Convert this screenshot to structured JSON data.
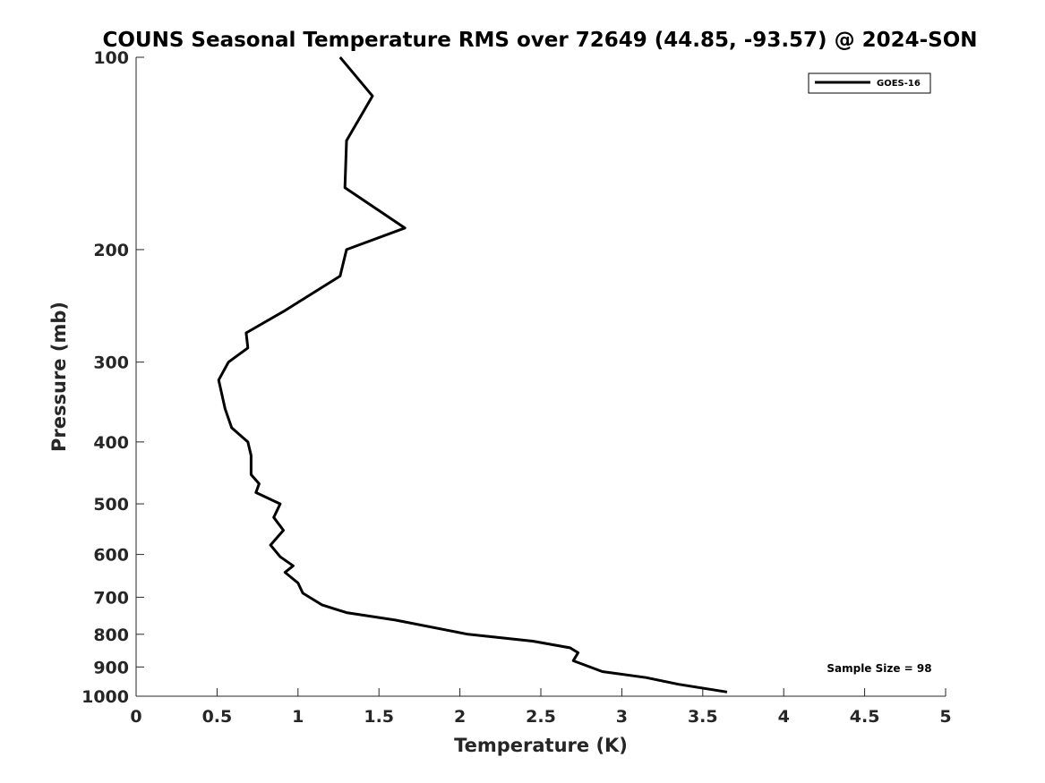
{
  "chart_data": {
    "type": "line",
    "title": "COUNS Seasonal Temperature RMS over 72649 (44.85, -93.57) @ 2024-SON",
    "xlabel": "Temperature (K)",
    "ylabel": "Pressure (mb)",
    "xlim": [
      0,
      5
    ],
    "ylim": [
      1000,
      100
    ],
    "y_scale": "log",
    "x_ticks": [
      0,
      0.5,
      1,
      1.5,
      2,
      2.5,
      3,
      3.5,
      4,
      4.5,
      5
    ],
    "x_tick_labels": [
      "0",
      "0.5",
      "1",
      "1.5",
      "2",
      "2.5",
      "3",
      "3.5",
      "4",
      "4.5",
      "5"
    ],
    "y_ticks": [
      100,
      200,
      300,
      400,
      500,
      600,
      700,
      800,
      900,
      1000
    ],
    "y_tick_labels": [
      "100",
      "200",
      "300",
      "400",
      "500",
      "600",
      "700",
      "800",
      "900",
      "1000"
    ],
    "grid": false,
    "legend_position": "top-right",
    "series": [
      {
        "name": "GOES-16",
        "color": "#000000",
        "points": [
          {
            "x": 1.26,
            "y": 100
          },
          {
            "x": 1.46,
            "y": 115
          },
          {
            "x": 1.3,
            "y": 135
          },
          {
            "x": 1.29,
            "y": 160
          },
          {
            "x": 1.66,
            "y": 185
          },
          {
            "x": 1.3,
            "y": 200
          },
          {
            "x": 1.26,
            "y": 220
          },
          {
            "x": 0.91,
            "y": 250
          },
          {
            "x": 0.68,
            "y": 270
          },
          {
            "x": 0.69,
            "y": 285
          },
          {
            "x": 0.57,
            "y": 300
          },
          {
            "x": 0.51,
            "y": 320
          },
          {
            "x": 0.55,
            "y": 355
          },
          {
            "x": 0.59,
            "y": 380
          },
          {
            "x": 0.69,
            "y": 400
          },
          {
            "x": 0.71,
            "y": 420
          },
          {
            "x": 0.71,
            "y": 450
          },
          {
            "x": 0.76,
            "y": 465
          },
          {
            "x": 0.74,
            "y": 480
          },
          {
            "x": 0.89,
            "y": 500
          },
          {
            "x": 0.85,
            "y": 525
          },
          {
            "x": 0.91,
            "y": 550
          },
          {
            "x": 0.83,
            "y": 580
          },
          {
            "x": 0.89,
            "y": 605
          },
          {
            "x": 0.97,
            "y": 625
          },
          {
            "x": 0.92,
            "y": 640
          },
          {
            "x": 1.0,
            "y": 665
          },
          {
            "x": 1.03,
            "y": 690
          },
          {
            "x": 1.15,
            "y": 720
          },
          {
            "x": 1.3,
            "y": 740
          },
          {
            "x": 1.6,
            "y": 760
          },
          {
            "x": 2.05,
            "y": 800
          },
          {
            "x": 2.45,
            "y": 820
          },
          {
            "x": 2.68,
            "y": 840
          },
          {
            "x": 2.73,
            "y": 855
          },
          {
            "x": 2.7,
            "y": 880
          },
          {
            "x": 2.88,
            "y": 915
          },
          {
            "x": 3.15,
            "y": 935
          },
          {
            "x": 3.35,
            "y": 958
          },
          {
            "x": 3.65,
            "y": 985
          }
        ]
      }
    ],
    "annotation": "Sample Size = 98"
  }
}
